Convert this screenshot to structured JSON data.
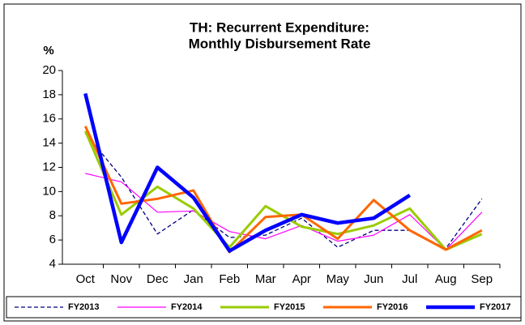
{
  "chart_data": {
    "type": "line",
    "title": [
      "TH: Recurrent Expenditure:",
      "Monthly Disbursement Rate"
    ],
    "y_label": "%",
    "categories": [
      "Oct",
      "Nov",
      "Dec",
      "Jan",
      "Feb",
      "Mar",
      "Apr",
      "May",
      "Jun",
      "Jul",
      "Aug",
      "Sep"
    ],
    "ylim": [
      4,
      20
    ],
    "yticks": [
      4,
      6,
      8,
      10,
      12,
      14,
      16,
      18,
      20
    ],
    "grid": false,
    "legend": "bottom",
    "series": [
      {
        "name": "FY2013",
        "color": "#000080",
        "line_width": 1.3,
        "dashed": true,
        "values": [
          14.8,
          11.2,
          6.5,
          8.5,
          6.2,
          6.4,
          7.8,
          5.4,
          6.8,
          6.8,
          5.3,
          9.4
        ]
      },
      {
        "name": "FY2014",
        "color": "#ff00ff",
        "line_width": 1.2,
        "dashed": false,
        "values": [
          11.5,
          10.8,
          8.3,
          8.4,
          6.7,
          6.1,
          7.2,
          5.9,
          6.4,
          8.1,
          5.2,
          8.3
        ]
      },
      {
        "name": "FY2015",
        "color": "#99cc00",
        "line_width": 3,
        "dashed": false,
        "values": [
          15.0,
          8.1,
          10.4,
          8.6,
          5.4,
          8.8,
          7.1,
          6.5,
          7.2,
          8.6,
          5.2,
          6.5
        ]
      },
      {
        "name": "FY2016",
        "color": "#ff6600",
        "line_width": 3,
        "dashed": false,
        "values": [
          15.4,
          9.0,
          9.4,
          10.1,
          5.0,
          7.9,
          8.1,
          6.1,
          9.3,
          6.8,
          5.2,
          6.8
        ]
      },
      {
        "name": "FY2017",
        "color": "#0000ff",
        "line_width": 4.5,
        "dashed": false,
        "values": [
          18.1,
          5.8,
          12.0,
          9.5,
          5.1,
          6.8,
          8.1,
          7.4,
          7.8,
          9.7,
          null,
          null
        ]
      }
    ]
  }
}
